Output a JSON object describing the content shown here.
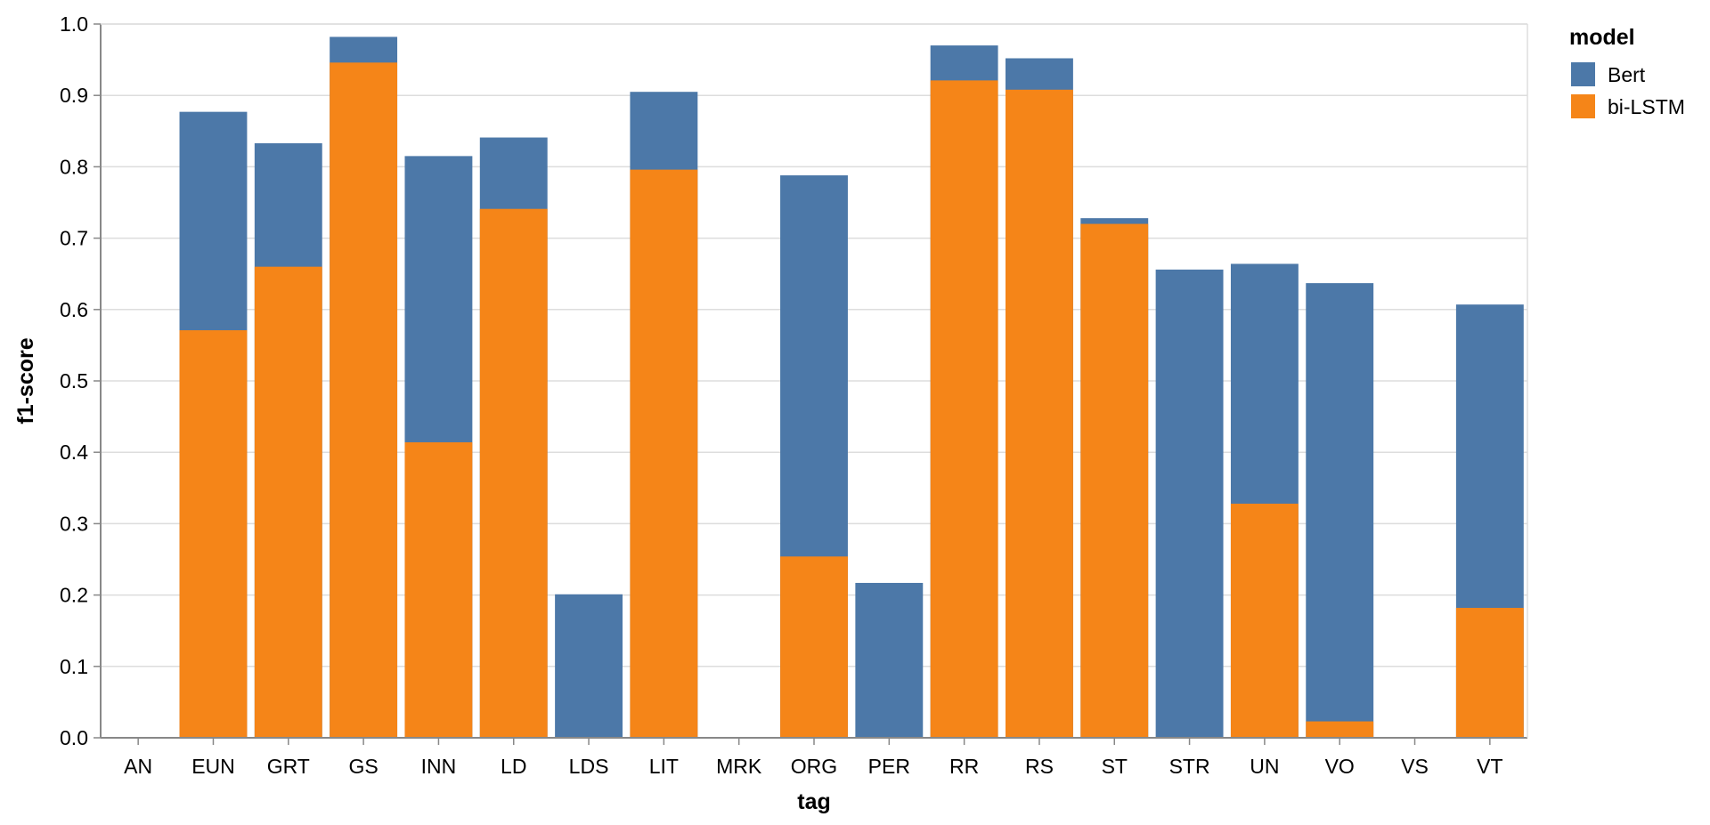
{
  "chart_data": {
    "type": "bar",
    "stacked": false,
    "overlay": true,
    "xlabel": "tag",
    "ylabel": "f1-score",
    "ylim": [
      0,
      1.0
    ],
    "yticks": [
      0.0,
      0.1,
      0.2,
      0.3,
      0.4,
      0.5,
      0.6,
      0.7,
      0.8,
      0.9,
      1.0
    ],
    "ytick_labels": [
      "0.0",
      "0.1",
      "0.2",
      "0.3",
      "0.4",
      "0.5",
      "0.6",
      "0.7",
      "0.8",
      "0.9",
      "1.0"
    ],
    "grid": true,
    "legend": {
      "title": "model",
      "position": "top-right"
    },
    "categories": [
      "AN",
      "EUN",
      "GRT",
      "GS",
      "INN",
      "LD",
      "LDS",
      "LIT",
      "MRK",
      "ORG",
      "PER",
      "RR",
      "RS",
      "ST",
      "STR",
      "UN",
      "VO",
      "VS",
      "VT"
    ],
    "series": [
      {
        "name": "Bert",
        "color": "#4c78a8",
        "values": [
          0,
          0.877,
          0.833,
          0.982,
          0.815,
          0.841,
          0.201,
          0.905,
          0,
          0.788,
          0.217,
          0.97,
          0.952,
          0.728,
          0.656,
          0.664,
          0.637,
          0,
          0.607
        ]
      },
      {
        "name": "bi-LSTM",
        "color": "#f58518",
        "values": [
          0,
          0.571,
          0.66,
          0.946,
          0.414,
          0.741,
          0,
          0.796,
          0,
          0.254,
          0,
          0.921,
          0.908,
          0.72,
          0,
          0.328,
          0.023,
          0,
          0.182
        ]
      }
    ]
  }
}
